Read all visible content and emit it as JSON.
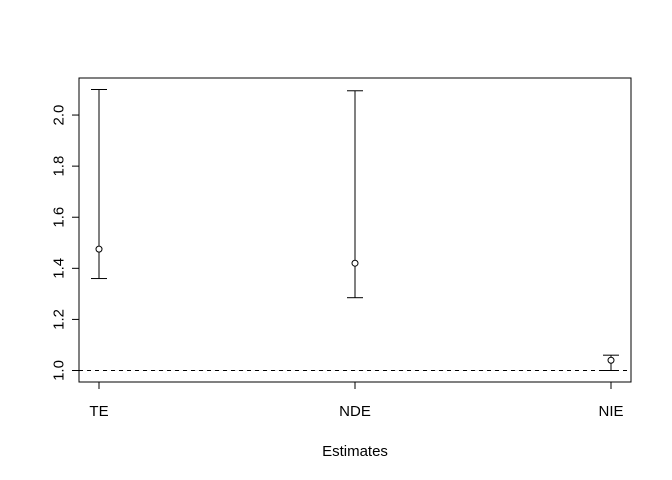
{
  "chart_data": {
    "type": "scatter",
    "title": "",
    "xlabel": "Estimates",
    "ylabel": "",
    "categories": [
      "TE",
      "NDE",
      "NIE"
    ],
    "points": [
      {
        "label": "TE",
        "estimate": 1.475,
        "lower": 1.36,
        "upper": 2.1
      },
      {
        "label": "NDE",
        "estimate": 1.42,
        "lower": 1.285,
        "upper": 2.095
      },
      {
        "label": "NIE",
        "estimate": 1.04,
        "lower": 1.0,
        "upper": 1.06
      }
    ],
    "ylim": [
      0.955,
      2.145
    ],
    "yticks": [
      1.0,
      1.2,
      1.4,
      1.6,
      1.8,
      2.0
    ],
    "ytick_labels": [
      "1.0",
      "1.2",
      "1.4",
      "1.6",
      "1.8",
      "2.0"
    ],
    "reference_line": {
      "y": 1.0,
      "style": "dashed"
    },
    "grid": false,
    "legend": "none"
  }
}
